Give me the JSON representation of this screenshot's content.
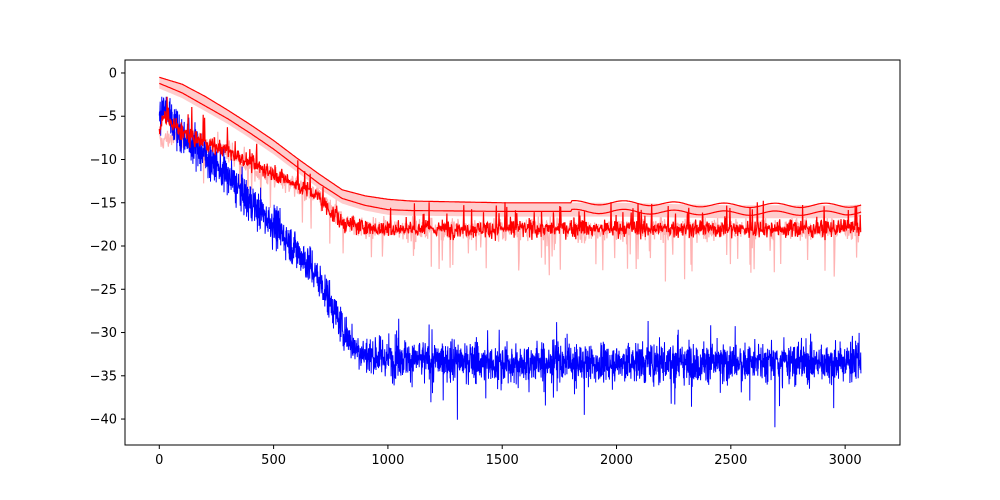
{
  "chart_data": {
    "type": "line",
    "title": "",
    "xlabel": "",
    "ylabel": "",
    "xlim": [
      -150,
      3240
    ],
    "ylim": [
      -43,
      1.5
    ],
    "x_ticks": [
      0,
      500,
      1000,
      1500,
      2000,
      2500,
      3000
    ],
    "y_ticks": [
      0,
      -5,
      -10,
      -15,
      -20,
      -25,
      -30,
      -35,
      -40
    ],
    "x_tick_labels": [
      "0",
      "500",
      "1000",
      "1500",
      "2000",
      "2500",
      "3000"
    ],
    "y_tick_labels": [
      "0",
      "−5",
      "−10",
      "−15",
      "−20",
      "−25",
      "−30",
      "−35",
      "−40"
    ],
    "n_points": 3070,
    "grid": false,
    "colors": {
      "blue": "#0000ff",
      "red": "#ff0000",
      "band": "#ffb3b3"
    },
    "series": [
      {
        "color": "#0000ff",
        "style": "noisy line",
        "x": [
          0,
          20,
          100,
          200,
          300,
          400,
          500,
          600,
          650,
          700,
          750,
          800,
          850,
          900,
          1000,
          1500,
          2000,
          2500,
          3000,
          3070
        ],
        "y": [
          -5,
          -4,
          -7,
          -9.5,
          -12,
          -15,
          -17.5,
          -20.5,
          -22,
          -24,
          -26.5,
          -29.5,
          -31.5,
          -32.5,
          -33,
          -33.5,
          -33.5,
          -33.5,
          -33.5,
          -33
        ]
      },
      {
        "color": "#ff0000",
        "style": "red line (best-so-far)",
        "x": [
          0,
          20,
          100,
          200,
          300,
          400,
          500,
          600,
          650,
          700,
          750,
          800,
          850,
          900,
          1000,
          1500,
          2000,
          2500,
          3000,
          3070
        ],
        "y": [
          -7,
          -5,
          -7,
          -8,
          -9,
          -10.5,
          -11.5,
          -13,
          -13.5,
          -14.5,
          -16,
          -17.5,
          -17.5,
          -18,
          -18,
          -18,
          -18,
          -18,
          -18,
          -18
        ]
      },
      {
        "color": "#ff0000",
        "style": "upper envelope",
        "x": [
          0,
          100,
          200,
          300,
          400,
          500,
          600,
          700,
          800,
          900,
          1000,
          1100,
          1500,
          2000,
          2500,
          3000,
          3070
        ],
        "y": [
          -0.5,
          -1.3,
          -2.7,
          -4.3,
          -6,
          -7.8,
          -9.8,
          -11.7,
          -13.5,
          -14.2,
          -14.6,
          -14.8,
          -15,
          -15,
          -15.3,
          -15.3,
          -15.2
        ]
      },
      {
        "color": "#ff0000",
        "style": "middle envelope",
        "x": [
          0,
          100,
          200,
          300,
          400,
          500,
          600,
          700,
          800,
          900,
          1000,
          1100,
          1500,
          2000,
          2500,
          3000,
          3070
        ],
        "y": [
          -1.2,
          -2.3,
          -3.8,
          -5.3,
          -7,
          -8.8,
          -10.8,
          -12.8,
          -14.5,
          -15.3,
          -15.8,
          -15.9,
          -16,
          -16,
          -16.2,
          -16.2,
          -16
        ]
      },
      {
        "color": "#ffb3b3",
        "style": "faint noisy lower band",
        "x": [
          0,
          100,
          200,
          300,
          400,
          500,
          600,
          700,
          800,
          900,
          1000,
          1500,
          2000,
          2500,
          3000,
          3070
        ],
        "y": [
          -8,
          -7,
          -8,
          -9,
          -11,
          -12,
          -13,
          -14.5,
          -17,
          -18,
          -18,
          -18,
          -18,
          -18,
          -18,
          -18
        ]
      }
    ]
  }
}
